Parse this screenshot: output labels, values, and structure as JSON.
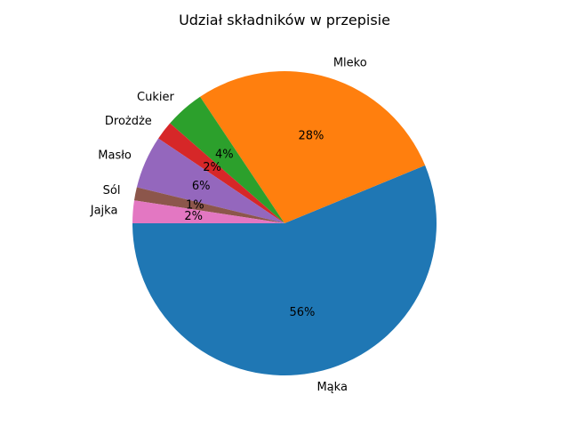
{
  "chart_data": {
    "type": "pie",
    "title": "Udział składników w przepisie",
    "start_angle_deg": 180,
    "direction": "counterclockwise",
    "slices": [
      {
        "label": "Mąka",
        "value": 56.1,
        "pct_label": "56%",
        "color": "#1f77b4"
      },
      {
        "label": "Mleko",
        "value": 28.1,
        "pct_label": "28%",
        "color": "#ff7f0e"
      },
      {
        "label": "Cukier",
        "value": 4.2,
        "pct_label": "4%",
        "color": "#2ca02c"
      },
      {
        "label": "Drożdże",
        "value": 2.0,
        "pct_label": "2%",
        "color": "#d62728"
      },
      {
        "label": "Masło",
        "value": 5.6,
        "pct_label": "6%",
        "color": "#9467bd"
      },
      {
        "label": "Sól",
        "value": 1.4,
        "pct_label": "1%",
        "color": "#8c564b"
      },
      {
        "label": "Jajka",
        "value": 2.4,
        "pct_label": "2%",
        "color": "#e377c2"
      }
    ]
  }
}
